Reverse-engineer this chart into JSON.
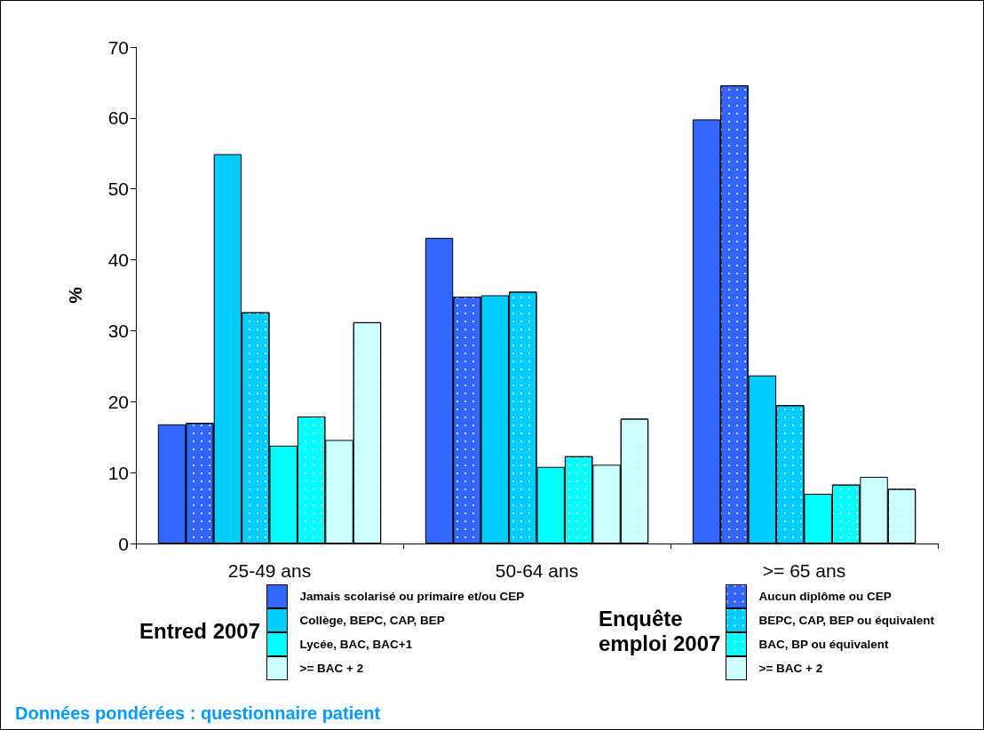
{
  "chart_data": {
    "type": "bar",
    "categories": [
      "25-49 ans",
      "50-64 ans",
      ">= 65 ans"
    ],
    "series": [
      {
        "name": "Jamais scolarisé ou primaire et/ou CEP",
        "color": "#3366ff",
        "values": [
          16.8,
          43.1,
          59.8
        ]
      },
      {
        "name": "Aucun diplôme ou CEP",
        "color": "#3366ff",
        "values": [
          17.0,
          34.8,
          64.6
        ]
      },
      {
        "name": "Collège, BEPC, CAP, BEP",
        "color": "#00ccff",
        "values": [
          54.9,
          35.0,
          23.7
        ]
      },
      {
        "name": "BEPC, CAP, BEP ou équivalent",
        "color": "#00ccff",
        "values": [
          32.6,
          35.5,
          19.5
        ]
      },
      {
        "name": "Lycée, BAC, BAC+1",
        "color": "#00ffff",
        "values": [
          13.8,
          10.8,
          7.0
        ]
      },
      {
        "name": "BAC, BP ou équivalent",
        "color": "#00ffff",
        "values": [
          17.9,
          12.3,
          8.3
        ]
      },
      {
        "name": ">= BAC + 2",
        "color": "#ccffff",
        "values": [
          14.6,
          11.1,
          9.4
        ]
      },
      {
        "name": ">= BAC + 2",
        "color": "#ccffff",
        "values": [
          31.2,
          17.6,
          7.7
        ]
      }
    ],
    "ylabel": "%",
    "ylim": [
      0,
      70
    ],
    "yticks": [
      0,
      10,
      20,
      30,
      40,
      50,
      60,
      70
    ],
    "grid": false,
    "legend": "bottom",
    "annotations": [
      "Entred 2007",
      "Enquête emploi 2007",
      "Données pondérées : questionnaire patient"
    ]
  }
}
